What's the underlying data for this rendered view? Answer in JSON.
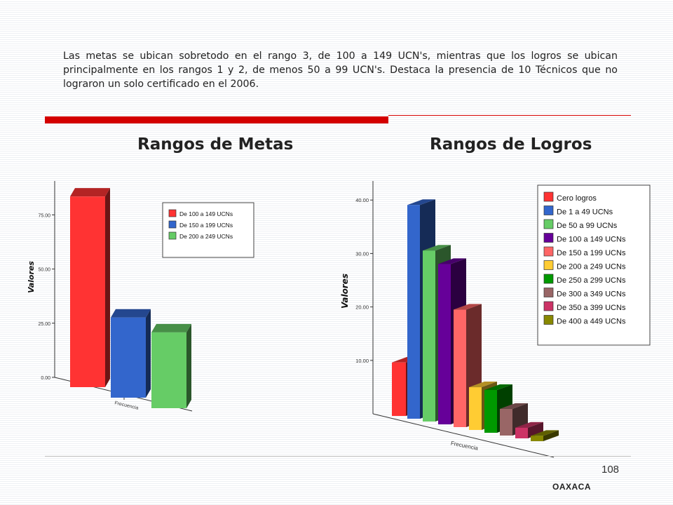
{
  "intro_text": "Las metas se ubican sobretodo en el rango 3, de 100 a 149 UCN's, mientras que los logros se ubican principalmente en los rangos 1 y 2, de menos 50 a 99 UCN's. Destaca la presencia de 10 Técnicos que no lograron un solo certificado en el 2006.",
  "page_number": "108",
  "footer_label": "OAXACA",
  "chart_data": [
    {
      "type": "bar",
      "title": "Rangos de Metas",
      "ylabel": "Valores",
      "xlabel": "Frecuencia",
      "ylim": [
        0,
        90
      ],
      "yticks": [
        "0.00",
        "25.00",
        "50.00",
        "75.00"
      ],
      "legend_position": "right",
      "grid": false,
      "series": [
        {
          "name": "De 100 a 149 UCNs",
          "value": 88,
          "color": "#ff3333"
        },
        {
          "name": "De 150 a 199 UCNs",
          "value": 37,
          "color": "#3366cc"
        },
        {
          "name": "De 200 a 249 UCNs",
          "value": 35,
          "color": "#66cc66"
        }
      ]
    },
    {
      "type": "bar",
      "title": "Rangos de Logros",
      "ylabel": "Valores",
      "xlabel": "Frecuencia",
      "ylim": [
        0,
        42
      ],
      "yticks": [
        "10.00",
        "20.00",
        "30.00",
        "40.00"
      ],
      "legend_position": "right",
      "grid": false,
      "series": [
        {
          "name": "Cero logros",
          "value": 10,
          "color": "#ff3333"
        },
        {
          "name": "De 1 a 49 UCNs",
          "value": 40,
          "color": "#3366cc"
        },
        {
          "name": "De 50 a 99 UCNs",
          "value": 32,
          "color": "#66cc66"
        },
        {
          "name": "De 100 a 149 UCNs",
          "value": 30,
          "color": "#660099"
        },
        {
          "name": "De 150 a 199 UCNs",
          "value": 22,
          "color": "#ff6666"
        },
        {
          "name": "De 200 a 249 UCNs",
          "value": 8,
          "color": "#ffcc33"
        },
        {
          "name": "De 250 a 299 UCNs",
          "value": 8,
          "color": "#009900"
        },
        {
          "name": "De 300 a 349 UCNs",
          "value": 5,
          "color": "#996666"
        },
        {
          "name": "De 350 a 399 UCNs",
          "value": 2,
          "color": "#cc3366"
        },
        {
          "name": "De 400 a 449 UCNs",
          "value": 1,
          "color": "#888800"
        }
      ]
    }
  ]
}
